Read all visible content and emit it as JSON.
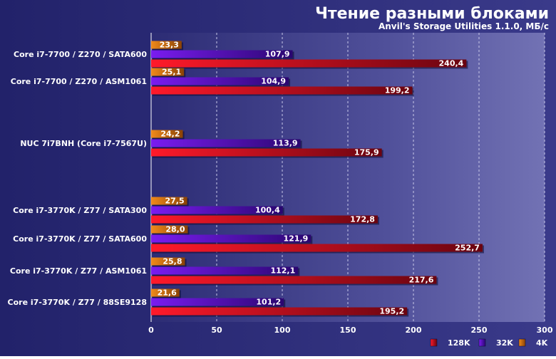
{
  "chart_data": {
    "type": "bar",
    "orientation": "horizontal",
    "title": "Чтение разными блоками",
    "subtitle": "Anvil's Storage Utilities 1.1.0, МБ/с",
    "categories": [
      "Core i7-7700 / Z270 / SATA600",
      "Core i7-7700 / Z270 / ASM1061",
      "NUC 7i7BNH (Core i7-7567U)",
      "Core i7-3770K / Z77 / SATA300",
      "Core i7-3770K / Z77 / SATA600",
      "Core i7-3770K / Z77 / ASM1061",
      "Core i7-3770K / Z77 / 88SE9128"
    ],
    "series": [
      {
        "name": "4K",
        "color": "#e07a10",
        "values": [
          23.3,
          25.1,
          24.2,
          27.5,
          28.0,
          25.8,
          21.6
        ],
        "labels": [
          "23,3",
          "25,1",
          "24,2",
          "27,5",
          "28,0",
          "25,8",
          "21,6"
        ]
      },
      {
        "name": "32K",
        "color": "#6a12d8",
        "values": [
          107.9,
          104.9,
          113.9,
          100.4,
          121.9,
          112.1,
          101.2
        ],
        "labels": [
          "107,9",
          "104,9",
          "113,9",
          "100,4",
          "121,9",
          "112,1",
          "101,2"
        ]
      },
      {
        "name": "128K",
        "color": "#e01020",
        "values": [
          240.4,
          199.2,
          175.9,
          172.8,
          252.7,
          217.6,
          195.2
        ],
        "labels": [
          "240,4",
          "199,2",
          "175,9",
          "172,8",
          "252,7",
          "217,6",
          "195,2"
        ]
      }
    ],
    "legend_order": [
      "128K",
      "32K",
      "4K"
    ],
    "xlim": [
      0,
      300
    ],
    "ticks": [
      0,
      50,
      100,
      150,
      200,
      250,
      300
    ],
    "grid": true,
    "legend_position": "bottom-right"
  }
}
